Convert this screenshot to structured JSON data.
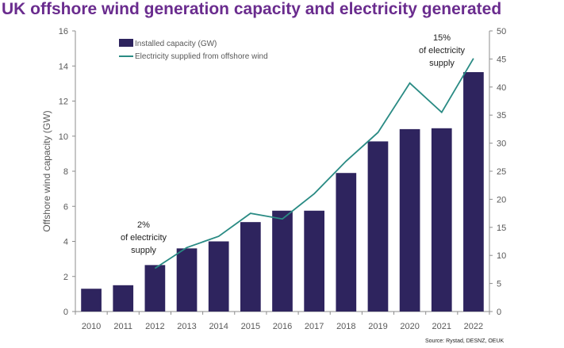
{
  "title": "UK offshore wind generation capacity and electricity generated",
  "chart_data": {
    "type": "bar",
    "categories": [
      "2010",
      "2011",
      "2012",
      "2013",
      "2014",
      "2015",
      "2016",
      "2017",
      "2018",
      "2019",
      "2020",
      "2021",
      "2022"
    ],
    "series": [
      {
        "name": "Installed capacity (GW)",
        "type": "bar",
        "axis": "left",
        "color": "#2e245e",
        "values": [
          1.3,
          1.5,
          2.65,
          3.6,
          4.0,
          5.1,
          5.75,
          5.75,
          7.9,
          9.7,
          10.4,
          10.45,
          13.65
        ]
      },
      {
        "name": "Electricity supplied from offshore wind",
        "type": "line",
        "axis": "right",
        "color": "#2a8b84",
        "x": [
          "2012",
          "2013",
          "2014",
          "2015",
          "2016",
          "2017",
          "2018",
          "2019",
          "2020",
          "2021",
          "2022"
        ],
        "values": [
          7.7,
          11.4,
          13.4,
          17.5,
          16.5,
          21.0,
          26.8,
          31.9,
          40.7,
          35.5,
          45.1
        ]
      }
    ],
    "ylabel": "Offshore wind capacity (GW)",
    "ylim": [
      0,
      16
    ],
    "yticks": [
      0,
      2,
      4,
      6,
      8,
      10,
      12,
      14,
      16
    ],
    "y2lim": [
      0,
      50
    ],
    "y2ticks": [
      0,
      5,
      10,
      15,
      20,
      25,
      30,
      35,
      40,
      45,
      50
    ],
    "legend_position": "top-left",
    "grid": false,
    "annotations": [
      {
        "id": "2012",
        "lines": [
          "2%",
          "of electricity",
          "supply"
        ]
      },
      {
        "id": "2022",
        "lines": [
          "15%",
          "of electricity",
          "supply"
        ]
      }
    ],
    "source": "Source: Rystad, DESNZ, OEUK"
  }
}
